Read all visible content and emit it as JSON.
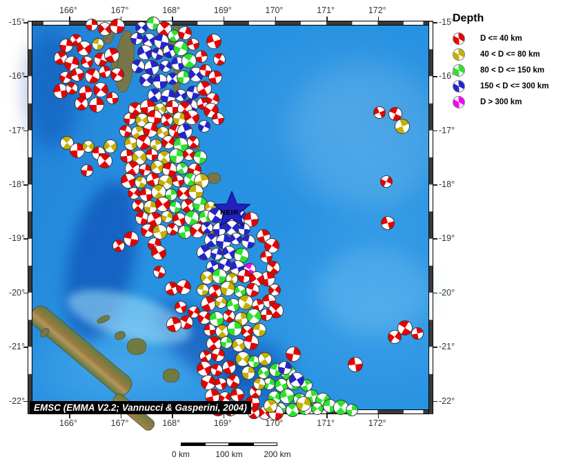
{
  "map": {
    "lon_labels": [
      "166°",
      "167°",
      "168°",
      "169°",
      "170°",
      "171°",
      "172°"
    ],
    "lat_labels": [
      "-15°",
      "-16°",
      "-17°",
      "-18°",
      "-19°",
      "-20°",
      "-21°",
      "-22°"
    ],
    "attribution": "EMSC (EMMA V2.2; Vannucci & Gasperini, 2004)",
    "star_label": "NEIR",
    "ocean_color": "#2792e2",
    "star_color": "#2121bd",
    "markers": [
      [
        133,
        36,
        0
      ],
      [
        152,
        42,
        0
      ],
      [
        170,
        38,
        0
      ],
      [
        110,
        58,
        0
      ],
      [
        96,
        66,
        0
      ],
      [
        122,
        70,
        0
      ],
      [
        142,
        64,
        1
      ],
      [
        88,
        84,
        0
      ],
      [
        104,
        92,
        0
      ],
      [
        126,
        90,
        0
      ],
      [
        146,
        86,
        0
      ],
      [
        162,
        80,
        0
      ],
      [
        95,
        112,
        0
      ],
      [
        112,
        108,
        0
      ],
      [
        134,
        110,
        0
      ],
      [
        152,
        104,
        0
      ],
      [
        170,
        108,
        0
      ],
      [
        88,
        132,
        0
      ],
      [
        104,
        128,
        0
      ],
      [
        124,
        134,
        0
      ],
      [
        146,
        130,
        0
      ],
      [
        163,
        142,
        0
      ],
      [
        118,
        150,
        0
      ],
      [
        140,
        152,
        0
      ],
      [
        205,
        40,
        3
      ],
      [
        222,
        34,
        2
      ],
      [
        238,
        42,
        0
      ],
      [
        198,
        56,
        3
      ],
      [
        216,
        58,
        3
      ],
      [
        234,
        60,
        3
      ],
      [
        252,
        52,
        2
      ],
      [
        268,
        48,
        0
      ],
      [
        210,
        76,
        3
      ],
      [
        228,
        78,
        3
      ],
      [
        246,
        74,
        3
      ],
      [
        262,
        70,
        2
      ],
      [
        280,
        64,
        0
      ],
      [
        200,
        96,
        3
      ],
      [
        220,
        98,
        3
      ],
      [
        240,
        96,
        3
      ],
      [
        258,
        92,
        3
      ],
      [
        274,
        88,
        2
      ],
      [
        292,
        82,
        0
      ],
      [
        212,
        116,
        3
      ],
      [
        232,
        118,
        3
      ],
      [
        250,
        114,
        3
      ],
      [
        266,
        112,
        2
      ],
      [
        284,
        108,
        3
      ],
      [
        298,
        102,
        0
      ],
      [
        224,
        138,
        3
      ],
      [
        244,
        140,
        3
      ],
      [
        262,
        138,
        3
      ],
      [
        280,
        134,
        3
      ],
      [
        296,
        128,
        0
      ],
      [
        238,
        156,
        2
      ],
      [
        258,
        158,
        3
      ],
      [
        276,
        154,
        3
      ],
      [
        294,
        150,
        0
      ],
      [
        308,
        144,
        0
      ],
      [
        310,
        60,
        0
      ],
      [
        318,
        86,
        0
      ],
      [
        312,
        112,
        0
      ],
      [
        306,
        160,
        0
      ],
      [
        316,
        172,
        0
      ],
      [
        196,
        158,
        0
      ],
      [
        214,
        155,
        0
      ],
      [
        232,
        158,
        1
      ],
      [
        250,
        155,
        0
      ],
      [
        268,
        158,
        0
      ],
      [
        188,
        172,
        0
      ],
      [
        206,
        174,
        1
      ],
      [
        224,
        170,
        0
      ],
      [
        242,
        174,
        0
      ],
      [
        260,
        172,
        1
      ],
      [
        278,
        170,
        0
      ],
      [
        182,
        190,
        0
      ],
      [
        200,
        192,
        1
      ],
      [
        218,
        188,
        0
      ],
      [
        236,
        192,
        1
      ],
      [
        254,
        190,
        0
      ],
      [
        268,
        190,
        3
      ],
      [
        296,
        183,
        3
      ],
      [
        190,
        208,
        1
      ],
      [
        208,
        206,
        0
      ],
      [
        226,
        210,
        1
      ],
      [
        244,
        206,
        0
      ],
      [
        262,
        210,
        2
      ],
      [
        280,
        206,
        0
      ],
      [
        184,
        226,
        0
      ],
      [
        202,
        228,
        1
      ],
      [
        220,
        224,
        0
      ],
      [
        238,
        228,
        1
      ],
      [
        256,
        226,
        2
      ],
      [
        274,
        224,
        0
      ],
      [
        290,
        228,
        2
      ],
      [
        192,
        244,
        0
      ],
      [
        210,
        246,
        0
      ],
      [
        228,
        242,
        1
      ],
      [
        246,
        246,
        0
      ],
      [
        264,
        244,
        2
      ],
      [
        282,
        246,
        0
      ],
      [
        186,
        262,
        0
      ],
      [
        204,
        264,
        1
      ],
      [
        222,
        260,
        0
      ],
      [
        240,
        264,
        1
      ],
      [
        258,
        262,
        0
      ],
      [
        276,
        260,
        2
      ],
      [
        292,
        262,
        1
      ],
      [
        194,
        280,
        0
      ],
      [
        212,
        282,
        0
      ],
      [
        230,
        278,
        1
      ],
      [
        248,
        282,
        2
      ],
      [
        266,
        280,
        0
      ],
      [
        284,
        278,
        1
      ],
      [
        200,
        298,
        0
      ],
      [
        218,
        300,
        1
      ],
      [
        236,
        296,
        0
      ],
      [
        254,
        300,
        2
      ],
      [
        272,
        298,
        0
      ],
      [
        290,
        296,
        2
      ],
      [
        305,
        300,
        1
      ],
      [
        206,
        316,
        0
      ],
      [
        224,
        318,
        0
      ],
      [
        242,
        314,
        1
      ],
      [
        260,
        318,
        0
      ],
      [
        278,
        316,
        2
      ],
      [
        296,
        318,
        0
      ],
      [
        214,
        334,
        0
      ],
      [
        232,
        336,
        1
      ],
      [
        250,
        332,
        0
      ],
      [
        268,
        336,
        2
      ],
      [
        286,
        334,
        0
      ],
      [
        302,
        332,
        1
      ],
      [
        97,
        207,
        1
      ],
      [
        112,
        218,
        0
      ],
      [
        128,
        212,
        1
      ],
      [
        143,
        222,
        0
      ],
      [
        152,
        233,
        0
      ],
      [
        126,
        247,
        0
      ],
      [
        160,
        212,
        1
      ],
      [
        190,
        346,
        0
      ],
      [
        172,
        356,
        0
      ],
      [
        224,
        354,
        0
      ],
      [
        230,
        366,
        0
      ],
      [
        231,
        394,
        0
      ],
      [
        249,
        418,
        0
      ],
      [
        266,
        416,
        0
      ],
      [
        262,
        445,
        0
      ],
      [
        270,
        467,
        0
      ],
      [
        252,
        470,
        0
      ],
      [
        281,
        452,
        0
      ],
      [
        298,
        314,
        2
      ],
      [
        312,
        312,
        3
      ],
      [
        330,
        318,
        3
      ],
      [
        348,
        314,
        3
      ],
      [
        364,
        318,
        0
      ],
      [
        300,
        330,
        3
      ],
      [
        318,
        332,
        3
      ],
      [
        336,
        330,
        3
      ],
      [
        354,
        332,
        3
      ],
      [
        306,
        348,
        3
      ],
      [
        324,
        350,
        3
      ],
      [
        342,
        346,
        3
      ],
      [
        360,
        350,
        3
      ],
      [
        296,
        366,
        3
      ],
      [
        314,
        368,
        3
      ],
      [
        332,
        366,
        3
      ],
      [
        350,
        370,
        2
      ],
      [
        308,
        386,
        3
      ],
      [
        326,
        384,
        3
      ],
      [
        344,
        388,
        3
      ],
      [
        362,
        390,
        4
      ],
      [
        382,
        342,
        0
      ],
      [
        394,
        356,
        0
      ],
      [
        386,
        372,
        0
      ],
      [
        396,
        388,
        0
      ],
      [
        388,
        404,
        0
      ],
      [
        398,
        420,
        0
      ],
      [
        390,
        436,
        0
      ],
      [
        400,
        450,
        0
      ],
      [
        386,
        456,
        0
      ],
      [
        300,
        402,
        1
      ],
      [
        318,
        400,
        2
      ],
      [
        336,
        404,
        1
      ],
      [
        354,
        400,
        0
      ],
      [
        372,
        404,
        0
      ],
      [
        294,
        420,
        1
      ],
      [
        312,
        422,
        0
      ],
      [
        330,
        418,
        1
      ],
      [
        348,
        422,
        2
      ],
      [
        366,
        420,
        0
      ],
      [
        302,
        440,
        0
      ],
      [
        320,
        438,
        1
      ],
      [
        338,
        442,
        2
      ],
      [
        356,
        438,
        1
      ],
      [
        374,
        442,
        0
      ],
      [
        296,
        460,
        0
      ],
      [
        314,
        462,
        2
      ],
      [
        332,
        458,
        0
      ],
      [
        350,
        462,
        1
      ],
      [
        368,
        458,
        2
      ],
      [
        304,
        478,
        0
      ],
      [
        322,
        480,
        1
      ],
      [
        340,
        476,
        2
      ],
      [
        358,
        480,
        0
      ],
      [
        376,
        478,
        1
      ],
      [
        310,
        498,
        0
      ],
      [
        328,
        496,
        2
      ],
      [
        346,
        500,
        1
      ],
      [
        364,
        496,
        0
      ],
      [
        298,
        516,
        0
      ],
      [
        316,
        514,
        0
      ],
      [
        296,
        534,
        0
      ],
      [
        314,
        536,
        0
      ],
      [
        332,
        532,
        0
      ],
      [
        302,
        554,
        0
      ],
      [
        320,
        556,
        0
      ],
      [
        338,
        552,
        0
      ],
      [
        308,
        574,
        0
      ],
      [
        326,
        576,
        0
      ],
      [
        344,
        572,
        0
      ],
      [
        316,
        592,
        0
      ],
      [
        334,
        594,
        0
      ],
      [
        352,
        590,
        0
      ],
      [
        366,
        584,
        0
      ],
      [
        370,
        568,
        0
      ],
      [
        360,
        540,
        1
      ],
      [
        352,
        520,
        1
      ],
      [
        368,
        524,
        2
      ],
      [
        384,
        520,
        1
      ],
      [
        425,
        513,
        0
      ],
      [
        382,
        540,
        2
      ],
      [
        400,
        536,
        2
      ],
      [
        418,
        540,
        2
      ],
      [
        390,
        556,
        2
      ],
      [
        408,
        558,
        2
      ],
      [
        426,
        554,
        2
      ],
      [
        444,
        558,
        2
      ],
      [
        398,
        576,
        2
      ],
      [
        416,
        574,
        2
      ],
      [
        434,
        578,
        2
      ],
      [
        452,
        574,
        2
      ],
      [
        468,
        580,
        2
      ],
      [
        406,
        592,
        2
      ],
      [
        424,
        594,
        2
      ],
      [
        442,
        590,
        2
      ],
      [
        460,
        592,
        2
      ],
      [
        478,
        588,
        2
      ],
      [
        494,
        590,
        2
      ],
      [
        510,
        594,
        2
      ],
      [
        384,
        598,
        0
      ],
      [
        400,
        598,
        0
      ],
      [
        368,
        598,
        0
      ],
      [
        413,
        533,
        3
      ],
      [
        430,
        550,
        3
      ],
      [
        376,
        556,
        1
      ],
      [
        392,
        588,
        1
      ],
      [
        440,
        585,
        1
      ],
      [
        550,
        163,
        0
      ],
      [
        573,
        165,
        0
      ],
      [
        583,
        183,
        1
      ],
      [
        560,
        263,
        0
      ],
      [
        562,
        323,
        0
      ],
      [
        587,
        475,
        0
      ],
      [
        605,
        483,
        0
      ],
      [
        572,
        488,
        0
      ],
      [
        515,
        528,
        0
      ]
    ]
  },
  "legend": {
    "title": "Depth",
    "items": [
      {
        "label": "D <= 40 km",
        "color": "#e80000"
      },
      {
        "label": "40 < D <= 80 km",
        "color": "#c4b000"
      },
      {
        "label": "80 < D <= 150 km",
        "color": "#2de32d"
      },
      {
        "label": "150 < D <= 300 km",
        "color": "#2424cf"
      },
      {
        "label": "D > 300 km",
        "color": "#f800f8"
      }
    ]
  },
  "scalebar": {
    "labels": [
      "0 km",
      "100 km",
      "200 km"
    ]
  },
  "depth_colors": [
    "#e80000",
    "#c4b000",
    "#2de32d",
    "#2424cf",
    "#f800f8"
  ]
}
